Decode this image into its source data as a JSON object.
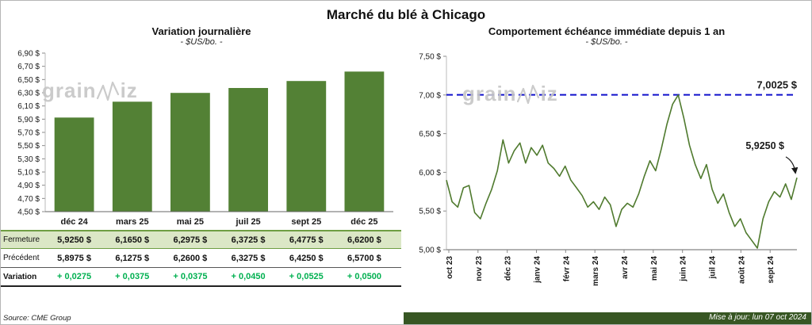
{
  "page": {
    "title": "Marché du blé à Chicago",
    "source": "Source: CME Group",
    "updated": "Mise à jour: lun 07 oct 2024",
    "watermark": "grainwiz"
  },
  "colors": {
    "bar_green": "#538135",
    "line_green": "#4f7a2e",
    "row_green_bg": "#dbe7c6",
    "variation_green": "#00B050",
    "threshold_blue": "#1111cc",
    "footer_green": "#375623"
  },
  "table": {
    "rows": [
      {
        "label": "Fermeture",
        "style": "fermeture",
        "values": [
          "5,9250  $",
          "6,1650  $",
          "6,2975  $",
          "6,3725  $",
          "6,4775  $",
          "6,6200  $"
        ]
      },
      {
        "label": "Précédent",
        "style": "precedent",
        "values": [
          "5,8975  $",
          "6,1275  $",
          "6,2600  $",
          "6,3275  $",
          "6,4250  $",
          "6,5700  $"
        ]
      },
      {
        "label": "Variation",
        "style": "variation",
        "values": [
          "+ 0,0275",
          "+ 0,0375",
          "+ 0,0375",
          "+ 0,0450",
          "+ 0,0525",
          "+ 0,0500"
        ]
      }
    ]
  },
  "chart_data": [
    {
      "type": "bar",
      "title": "Variation  journalière",
      "subtitle": "- $US/bo. -",
      "categories": [
        "déc 24",
        "mars 25",
        "mai 25",
        "juil 25",
        "sept 25",
        "déc 25"
      ],
      "values": [
        5.925,
        6.165,
        6.2975,
        6.3725,
        6.4775,
        6.62
      ],
      "ylim": [
        4.5,
        6.9
      ],
      "ytick_step": 0.2,
      "ytick_labels": [
        "4,50 $",
        "4,70 $",
        "4,90 $",
        "5,10 $",
        "5,30 $",
        "5,50 $",
        "5,70 $",
        "5,90 $",
        "6,10 $",
        "6,30 $",
        "6,50 $",
        "6,70 $",
        "6,90 $"
      ],
      "grid": false,
      "legend": "none"
    },
    {
      "type": "line",
      "title": "Comportement  échéance  immédiate  depuis 1 an",
      "subtitle": "- $US/bo. -",
      "x_labels": [
        "oct 23",
        "nov 23",
        "déc 23",
        "janv 24",
        "févr 24",
        "mars 24",
        "avr 24",
        "mai 24",
        "juin 24",
        "juil 24",
        "août 24",
        "sept 24"
      ],
      "values": [
        5.9,
        5.62,
        5.55,
        5.8,
        5.83,
        5.48,
        5.4,
        5.6,
        5.78,
        6.02,
        6.42,
        6.12,
        6.28,
        6.38,
        6.12,
        6.32,
        6.22,
        6.35,
        6.12,
        6.05,
        5.95,
        6.08,
        5.9,
        5.8,
        5.7,
        5.55,
        5.62,
        5.52,
        5.68,
        5.58,
        5.3,
        5.52,
        5.6,
        5.55,
        5.72,
        5.95,
        6.15,
        6.02,
        6.3,
        6.62,
        6.88,
        7.0,
        6.7,
        6.35,
        6.1,
        5.92,
        6.1,
        5.78,
        5.6,
        5.72,
        5.48,
        5.3,
        5.4,
        5.22,
        5.12,
        5.02,
        5.4,
        5.62,
        5.75,
        5.68,
        5.85,
        5.65,
        5.93
      ],
      "ylim": [
        5.0,
        7.5
      ],
      "ytick_step": 0.5,
      "ytick_labels": [
        "5,00 $",
        "5,50 $",
        "6,00 $",
        "6,50 $",
        "7,00 $",
        "7,50 $"
      ],
      "threshold": {
        "value": 7.0025,
        "label": "7,0025  $"
      },
      "end_label": "5,9250  $",
      "grid": false,
      "legend": "none"
    }
  ]
}
